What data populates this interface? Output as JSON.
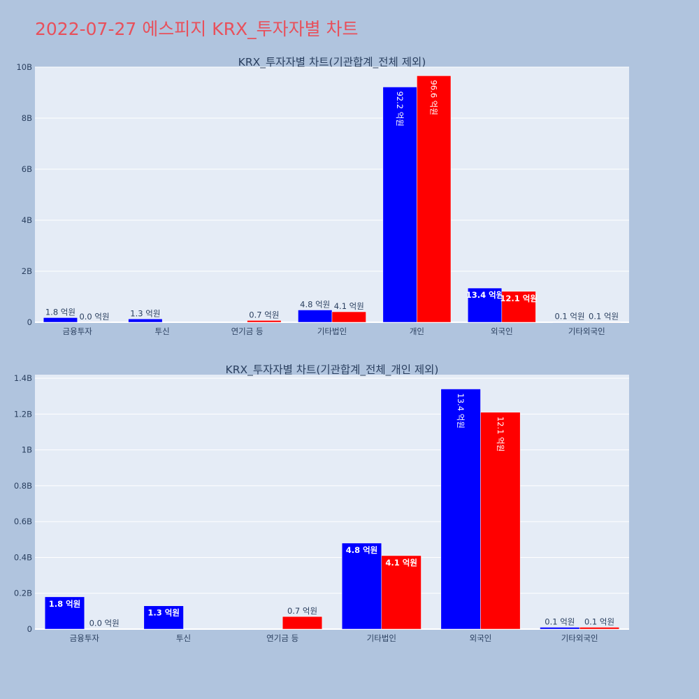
{
  "page_title": "2022-07-27 에스피지 KRX_투자자별 차트",
  "colors": {
    "background": "#b0c4de",
    "plot_bg": "#e5ecf6",
    "buy": "#0000ff",
    "sell": "#ff0000",
    "title": "#e8505b"
  },
  "chart_data": [
    {
      "type": "bar",
      "title": "KRX_투자자별 차트(기관합계_전체 제외)",
      "categories": [
        "금융투자",
        "투신",
        "연기금 등",
        "기타법인",
        "개인",
        "외국인",
        "기타외국인"
      ],
      "series": [
        {
          "values": [
            180000000,
            130000000,
            0,
            480000000,
            9220000000,
            1340000000,
            10000000
          ],
          "labels": [
            "1.8 억원",
            "1.3 억원",
            "",
            "4.8 억원",
            "92.2 억원",
            "13.4 억원",
            "0.1 억원"
          ]
        },
        {
          "values": [
            1000000,
            0,
            70000000,
            410000000,
            9660000000,
            1210000000,
            10000000
          ],
          "labels": [
            "0.0 억원",
            "",
            "0.7 억원",
            "4.1 억원",
            "96.6 억원",
            "12.1 억원",
            "0.1 억원"
          ]
        }
      ],
      "ylim": [
        0,
        10000000000
      ],
      "yticks": [
        0,
        2000000000,
        4000000000,
        6000000000,
        8000000000,
        10000000000
      ],
      "ytick_labels": [
        "0",
        "2B",
        "4B",
        "6B",
        "8B",
        "10B"
      ],
      "grid": true
    },
    {
      "type": "bar",
      "title": "KRX_투자자별 차트(기관합계_전체_개인 제외)",
      "categories": [
        "금융투자",
        "투신",
        "연기금 등",
        "기타법인",
        "외국인",
        "기타외국인"
      ],
      "series": [
        {
          "values": [
            180000000,
            130000000,
            0,
            480000000,
            1340000000,
            10000000
          ],
          "labels": [
            "1.8 억원",
            "1.3 억원",
            "",
            "4.8 억원",
            "13.4 억원",
            "0.1 억원"
          ]
        },
        {
          "values": [
            1000000,
            0,
            70000000,
            410000000,
            1210000000,
            10000000
          ],
          "labels": [
            "0.0 억원",
            "",
            "0.7 억원",
            "4.1 억원",
            "12.1 억원",
            "0.1 억원"
          ]
        }
      ],
      "ylim": [
        0,
        1420000000
      ],
      "yticks": [
        0,
        200000000,
        400000000,
        600000000,
        800000000,
        1000000000,
        1200000000,
        1400000000
      ],
      "ytick_labels": [
        "0",
        "0.2B",
        "0.4B",
        "0.6B",
        "0.8B",
        "1B",
        "1.2B",
        "1.4B"
      ],
      "grid": true
    }
  ]
}
